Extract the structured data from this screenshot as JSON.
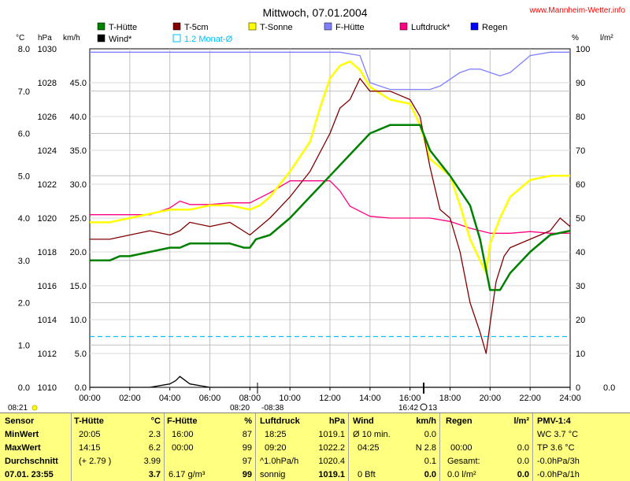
{
  "title": "Mittwoch, 07.01.2004",
  "website": "www.Mannheim-Wetter.info",
  "legend": [
    {
      "label": "T-Hütte",
      "color": "#008000"
    },
    {
      "label": "T-5cm",
      "color": "#800000"
    },
    {
      "label": "T-Sonne",
      "color": "#ffff00"
    },
    {
      "label": "F-Hütte",
      "color": "#8080ff"
    },
    {
      "label": "Luftdruck*",
      "color": "#ff0080"
    },
    {
      "label": "Regen",
      "color": "#0000ff"
    },
    {
      "label": "Wind*",
      "color": "#000000"
    },
    {
      "label": "1.2 Monat-Ø",
      "color": "#00c0ff"
    }
  ],
  "axes": {
    "unit_c": "°C",
    "unit_hpa": "hPa",
    "unit_kmh": "km/h",
    "unit_pct": "%",
    "unit_lm2": "l/m²",
    "c_ticks": [
      "8.0",
      "7.0",
      "6.0",
      "5.0",
      "4.0",
      "3.0",
      "2.0",
      "1.0",
      "0.0"
    ],
    "hpa_ticks": [
      "1030",
      "1028",
      "1026",
      "1024",
      "1022",
      "1020",
      "1018",
      "1016",
      "1014",
      "1012",
      "1010"
    ],
    "kmh_ticks": [
      "45.0",
      "40.0",
      "35.0",
      "30.0",
      "25.0",
      "20.0",
      "15.0",
      "10.0",
      "5.0",
      "0.0"
    ],
    "pct_ticks": [
      "100",
      "90",
      "80",
      "70",
      "60",
      "50",
      "40",
      "30",
      "20",
      "10",
      "0"
    ],
    "rain_tick": "0.0",
    "x_ticks": [
      "00:00",
      "02:00",
      "04:00",
      "06:00",
      "08:00",
      "10:00",
      "12:00",
      "14:00",
      "16:00",
      "18:00",
      "20:00",
      "22:00",
      "24:00"
    ]
  },
  "sun": {
    "left_time": "08:21",
    "rise_set": "08:20",
    "rise_set2": "-08:38",
    "right": "16:42",
    "right2": "13"
  },
  "chart_data": {
    "type": "line",
    "x_unit": "hours",
    "xlim": [
      0,
      24
    ],
    "ylim_c": [
      0,
      8
    ],
    "series": [
      {
        "name": "T-Hütte",
        "axis": "°C",
        "color": "#008000",
        "x": [
          0,
          1,
          1.5,
          2,
          3,
          4,
          4.5,
          5,
          6,
          7,
          7.7,
          8,
          8.3,
          9,
          10,
          11,
          12,
          13,
          14,
          15,
          16,
          16.5,
          17,
          18,
          19,
          19.5,
          20,
          20.5,
          21,
          22,
          23,
          24
        ],
        "y": [
          3.0,
          3.0,
          3.1,
          3.1,
          3.2,
          3.3,
          3.3,
          3.4,
          3.4,
          3.4,
          3.3,
          3.3,
          3.5,
          3.6,
          4.0,
          4.5,
          5.0,
          5.5,
          6.0,
          6.2,
          6.2,
          6.2,
          5.6,
          5.0,
          4.3,
          3.5,
          2.3,
          2.3,
          2.7,
          3.2,
          3.6,
          3.7
        ]
      },
      {
        "name": "T-5cm",
        "axis": "°C",
        "color": "#800000",
        "x": [
          0,
          1,
          2,
          3,
          4,
          4.5,
          5,
          6,
          7,
          8,
          9,
          10,
          11,
          12,
          12.5,
          13,
          13.5,
          14,
          15,
          16,
          16.5,
          17,
          17.5,
          18,
          18.5,
          19,
          19.5,
          19.8,
          20,
          20.3,
          20.7,
          21,
          22,
          23,
          23.5,
          24
        ],
        "y": [
          3.5,
          3.5,
          3.6,
          3.7,
          3.6,
          3.7,
          3.9,
          3.8,
          3.9,
          3.6,
          4.0,
          4.5,
          5.1,
          6.0,
          6.6,
          6.8,
          7.3,
          7.0,
          7.0,
          6.8,
          6.4,
          5.2,
          4.2,
          4.0,
          3.2,
          2.0,
          1.3,
          0.8,
          1.5,
          2.5,
          3.1,
          3.3,
          3.5,
          3.7,
          4.0,
          3.8
        ]
      },
      {
        "name": "T-Sonne",
        "axis": "°C",
        "color": "#ffff00",
        "x": [
          0,
          1,
          2,
          3,
          4,
          5,
          6,
          7,
          8,
          8.5,
          9,
          10,
          11,
          11.5,
          12,
          12.5,
          13,
          13.5,
          14,
          15,
          16,
          16.5,
          17,
          17.5,
          18,
          18.5,
          19,
          19.5,
          19.8,
          20,
          20.5,
          21,
          22,
          23,
          24
        ],
        "y": [
          3.9,
          3.9,
          4.0,
          4.1,
          4.2,
          4.2,
          4.3,
          4.3,
          4.2,
          4.3,
          4.5,
          5.1,
          5.8,
          6.6,
          7.3,
          7.6,
          7.7,
          7.5,
          7.1,
          6.8,
          6.7,
          6.2,
          5.4,
          5.2,
          5.0,
          4.3,
          3.5,
          3.0,
          2.7,
          3.4,
          4.0,
          4.5,
          4.9,
          5.0,
          5.0
        ]
      },
      {
        "name": "F-Hütte",
        "axis": "%",
        "color": "#8080ff",
        "x": [
          0,
          7,
          8,
          12.5,
          13.5,
          14,
          15,
          16,
          16.5,
          17,
          17.5,
          18,
          18.5,
          19,
          19.5,
          20,
          20.5,
          21,
          22,
          23,
          24
        ],
        "y": [
          99,
          99,
          99,
          99,
          98,
          90,
          88,
          88,
          88,
          88,
          89,
          91,
          93,
          94,
          94,
          93,
          92,
          93,
          98,
          99,
          99
        ]
      },
      {
        "name": "Luftdruck*",
        "axis": "hPa",
        "color": "#ff0080",
        "x": [
          0,
          3,
          4,
          4.5,
          5,
          6,
          7,
          8,
          9,
          10,
          11,
          12,
          12.5,
          13,
          14,
          15,
          16,
          17,
          18,
          19,
          20,
          21,
          22,
          23,
          24
        ],
        "y": [
          1020.2,
          1020.2,
          1020.6,
          1021.0,
          1020.8,
          1020.8,
          1020.9,
          1020.9,
          1021.5,
          1022.2,
          1022.2,
          1022.2,
          1021.6,
          1020.7,
          1020.1,
          1020.0,
          1020.0,
          1020.0,
          1019.8,
          1019.4,
          1019.1,
          1019.1,
          1019.2,
          1019.1,
          1019.1
        ]
      },
      {
        "name": "Wind*",
        "axis": "km/h",
        "color": "#000000",
        "x": [
          0,
          3,
          4,
          4.3,
          4.5,
          5,
          6,
          7,
          8,
          9,
          10,
          11,
          12,
          14,
          16,
          17,
          18,
          20,
          22,
          24
        ],
        "y": [
          0,
          0,
          0.5,
          1.0,
          1.6,
          0.5,
          0,
          0,
          0,
          0,
          0,
          0,
          0,
          0,
          0,
          0,
          0,
          0,
          0,
          0
        ]
      },
      {
        "name": "1.2 Monat-Ø",
        "axis": "°C",
        "color": "#00c0ff",
        "x": [
          0,
          24
        ],
        "y": [
          1.2,
          1.2
        ]
      }
    ]
  },
  "stats": {
    "sensor": {
      "h1": "Sensor",
      "r1": "MinWert",
      "r2": "MaxWert",
      "r3": "Durchschnitt",
      "r4": "07.01. 23:55"
    },
    "t_huette": {
      "h1": "T-Hütte",
      "h2": "°C",
      "r1a": "20:05",
      "r1b": "2.3",
      "r2a": "14:15",
      "r2b": "6.2",
      "r3a": "(+ 2.79 )",
      "r3b": "3.99",
      "r4b": "3.7"
    },
    "f_huette": {
      "h1": "F-Hütte",
      "h2": "%",
      "r1a": "16:00",
      "r1b": "87",
      "r2a": "00:00",
      "r2b": "99",
      "r3b": "97",
      "r4a": "6.17 g/m³",
      "r4b": "99"
    },
    "luftdruck": {
      "h1": "Luftdruck",
      "h2": "hPa",
      "r1a": "18:25",
      "r1b": "1019.1",
      "r2a": "09:20",
      "r2b": "1022.2",
      "r3a": "^1.0hPa/h",
      "r3b": "1020.4",
      "r4a": "sonnig",
      "r4b": "1019.1"
    },
    "wind": {
      "h1": "Wind",
      "h2": "km/h",
      "r1a": "Ø 10 min.",
      "r1b": "0.0",
      "r2a": "04:25",
      "r2b": "N 2.8",
      "r3b": "0.1",
      "r4a": "0 Bft",
      "r4b": "0.0"
    },
    "regen": {
      "h1": "Regen",
      "h2": "l/m²",
      "r2a": "00:00",
      "r2b": "0.0",
      "r3a": "Gesamt:",
      "r3b": "0.0",
      "r4a": "0.0 l/m²",
      "r4b": "0.0"
    },
    "pmv": {
      "h1": "PMV-1:4",
      "r1": "WC 3.7 °C",
      "r2": "TP 3.6 °C",
      "r3": "-0.0hPa/3h",
      "r4": "-0.0hPa/1h"
    }
  }
}
